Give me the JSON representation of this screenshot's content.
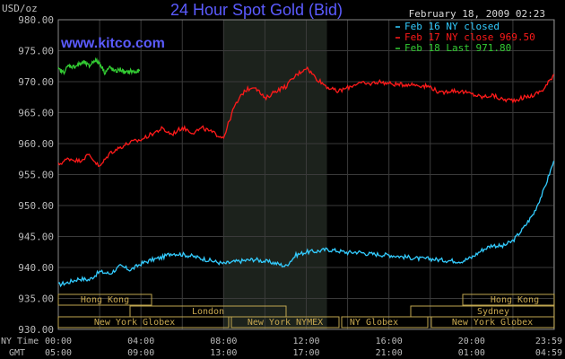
{
  "header": {
    "unit": "USD/oz",
    "title": "24 Hour Spot Gold (Bid)",
    "date": "February 18, 2009 02:23",
    "watermark": "www.kitco.com"
  },
  "chart_data": {
    "type": "line",
    "title": "24 Hour Spot Gold (Bid)",
    "ylabel": "USD/oz",
    "ylim": [
      930,
      980
    ],
    "y_ticks": [
      "980.00",
      "975.00",
      "970.00",
      "965.00",
      "960.00",
      "955.00",
      "950.00",
      "945.00",
      "940.00",
      "935.00",
      "930.00"
    ],
    "x_ticks_ny": [
      "00:00",
      "04:00",
      "08:00",
      "12:00",
      "16:00",
      "20:00",
      "23:59"
    ],
    "x_ticks_gmt": [
      "05:00",
      "09:00",
      "13:00",
      "17:00",
      "21:00",
      "01:00",
      "04:59"
    ],
    "x_axis_label_ny": "NY Time",
    "x_axis_label_gmt": "GMT",
    "highlight_hours": [
      8,
      13
    ],
    "grid": true,
    "legend_position": "top-right",
    "series": [
      {
        "name": "Feb 16 NY closed",
        "color": "#33ccff",
        "points": [
          [
            0,
            937.2
          ],
          [
            0.5,
            937.6
          ],
          [
            1,
            938.2
          ],
          [
            1.5,
            938.0
          ],
          [
            2,
            939.3
          ],
          [
            2.5,
            939.0
          ],
          [
            3,
            940.2
          ],
          [
            3.5,
            939.6
          ],
          [
            4,
            940.6
          ],
          [
            4.5,
            941.2
          ],
          [
            5,
            941.6
          ],
          [
            5.5,
            942.3
          ],
          [
            6,
            942.1
          ],
          [
            6.5,
            941.8
          ],
          [
            7,
            941.4
          ],
          [
            7.5,
            941.0
          ],
          [
            8,
            940.6
          ],
          [
            8.5,
            940.9
          ],
          [
            9,
            941.1
          ],
          [
            9.5,
            941.3
          ],
          [
            10,
            941.0
          ],
          [
            10.5,
            940.7
          ],
          [
            11,
            940.2
          ],
          [
            11.5,
            942.0
          ],
          [
            12,
            942.5
          ],
          [
            12.5,
            942.6
          ],
          [
            13,
            942.9
          ],
          [
            13.5,
            942.7
          ],
          [
            14,
            942.4
          ],
          [
            14.5,
            942.5
          ],
          [
            15,
            942.2
          ],
          [
            15.5,
            942.1
          ],
          [
            16,
            942.0
          ],
          [
            16.5,
            941.8
          ],
          [
            17,
            941.6
          ],
          [
            17.5,
            941.4
          ],
          [
            18,
            941.4
          ],
          [
            18.5,
            941.2
          ],
          [
            19,
            941.1
          ],
          [
            19.5,
            941.0
          ],
          [
            20,
            941.6
          ],
          [
            20.5,
            942.8
          ],
          [
            21,
            943.6
          ],
          [
            21.5,
            943.4
          ],
          [
            22,
            944.3
          ],
          [
            22.5,
            946.3
          ],
          [
            23,
            948.7
          ],
          [
            23.5,
            952.5
          ],
          [
            23.98,
            957.2
          ]
        ]
      },
      {
        "name": "Feb 17 NY close 969.50",
        "color": "#ff1a1a",
        "points": [
          [
            0,
            956.6
          ],
          [
            0.5,
            957.6
          ],
          [
            1,
            957.2
          ],
          [
            1.5,
            958.2
          ],
          [
            2,
            956.2
          ],
          [
            2.5,
            958.5
          ],
          [
            3,
            959.4
          ],
          [
            3.5,
            960.2
          ],
          [
            4,
            960.6
          ],
          [
            4.5,
            961.5
          ],
          [
            5,
            962.4
          ],
          [
            5.5,
            961.5
          ],
          [
            6,
            962.6
          ],
          [
            6.5,
            961.8
          ],
          [
            7,
            962.5
          ],
          [
            7.5,
            961.7
          ],
          [
            8,
            961.0
          ],
          [
            8.5,
            965.8
          ],
          [
            9,
            968.5
          ],
          [
            9.5,
            969.3
          ],
          [
            10,
            967.2
          ],
          [
            10.5,
            968.5
          ],
          [
            11,
            969.2
          ],
          [
            11.5,
            971.0
          ],
          [
            12,
            972.3
          ],
          [
            12.5,
            970.5
          ],
          [
            13,
            969.2
          ],
          [
            13.5,
            968.4
          ],
          [
            14,
            969.0
          ],
          [
            14.5,
            969.8
          ],
          [
            15,
            969.6
          ],
          [
            15.5,
            970.0
          ],
          [
            16,
            969.7
          ],
          [
            16.5,
            969.5
          ],
          [
            17,
            969.6
          ],
          [
            17.5,
            969.4
          ],
          [
            18,
            969.2
          ],
          [
            18.5,
            968.1
          ],
          [
            19,
            968.6
          ],
          [
            19.5,
            968.4
          ],
          [
            20,
            968.0
          ],
          [
            20.5,
            967.5
          ],
          [
            21,
            967.8
          ],
          [
            21.5,
            967.1
          ],
          [
            22,
            967.0
          ],
          [
            22.5,
            967.4
          ],
          [
            23,
            967.8
          ],
          [
            23.5,
            968.8
          ],
          [
            23.98,
            971.2
          ]
        ]
      },
      {
        "name": "Feb 18 Last 971.80",
        "color": "#33cc33",
        "points": [
          [
            0,
            972.0
          ],
          [
            0.25,
            971.5
          ],
          [
            0.5,
            972.6
          ],
          [
            0.75,
            972.4
          ],
          [
            1,
            972.8
          ],
          [
            1.25,
            973.1
          ],
          [
            1.5,
            972.5
          ],
          [
            1.75,
            973.5
          ],
          [
            2,
            973.0
          ],
          [
            2.25,
            971.5
          ],
          [
            2.5,
            972.3
          ],
          [
            2.75,
            971.6
          ],
          [
            3,
            972.0
          ],
          [
            3.25,
            971.4
          ],
          [
            3.5,
            971.7
          ],
          [
            3.75,
            971.5
          ],
          [
            3.95,
            971.8
          ]
        ]
      }
    ]
  },
  "markets": {
    "hong_kong": "Hong Kong",
    "london": "London",
    "sydney": "Sydney",
    "ny_globex": "New York Globex",
    "ny_nymex": "New York NYMEX",
    "ny_globex_short": "NY Globex"
  }
}
